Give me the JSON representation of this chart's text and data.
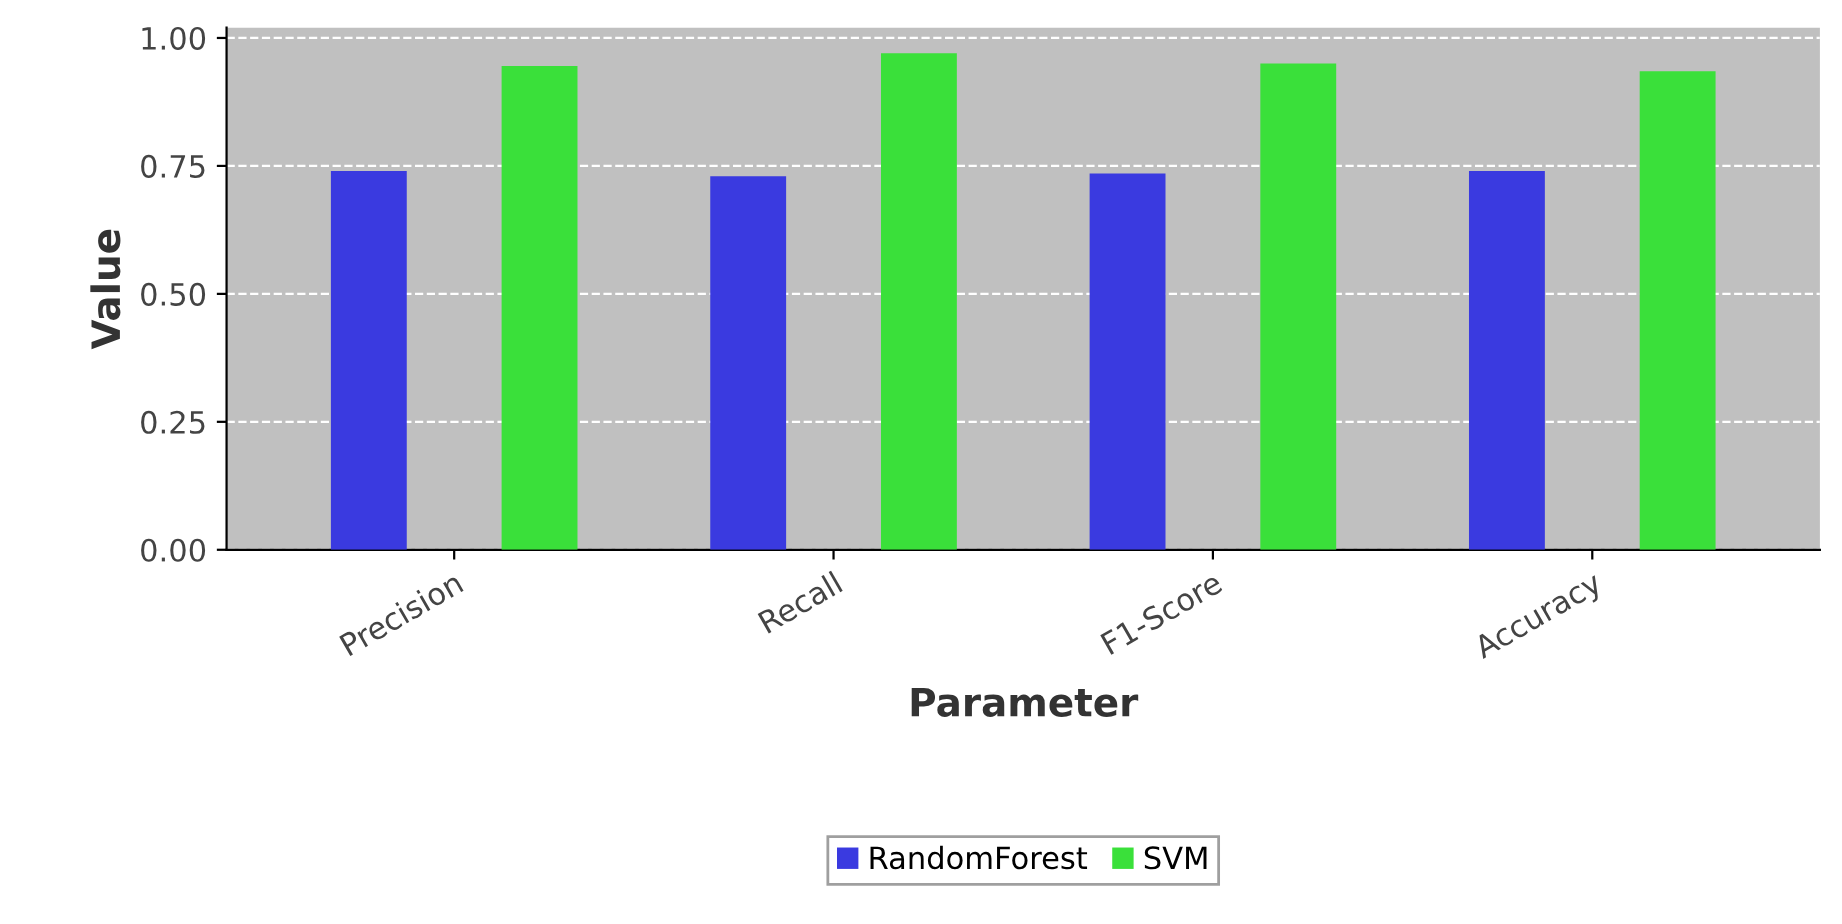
{
  "chart_data": {
    "type": "bar",
    "xlabel": "Parameter",
    "ylabel": "Value",
    "categories": [
      "Precision",
      "Recall",
      "F1-Score",
      "Accuracy"
    ],
    "series": [
      {
        "name": "RandomForest",
        "color": "#3a3ae0",
        "values": [
          0.74,
          0.73,
          0.735,
          0.74
        ]
      },
      {
        "name": "SVM",
        "color": "#3ae03a",
        "values": [
          0.945,
          0.97,
          0.95,
          0.935
        ]
      }
    ],
    "ylim": [
      0,
      1.02
    ],
    "yticks": [
      {
        "value": 0,
        "label": "0.00"
      },
      {
        "value": 0.25,
        "label": "0.25"
      },
      {
        "value": 0.5,
        "label": "0.50"
      },
      {
        "value": 0.75,
        "label": "0.75"
      },
      {
        "value": 1,
        "label": "1.00"
      }
    ],
    "grid": "y",
    "legend": "bottom"
  }
}
